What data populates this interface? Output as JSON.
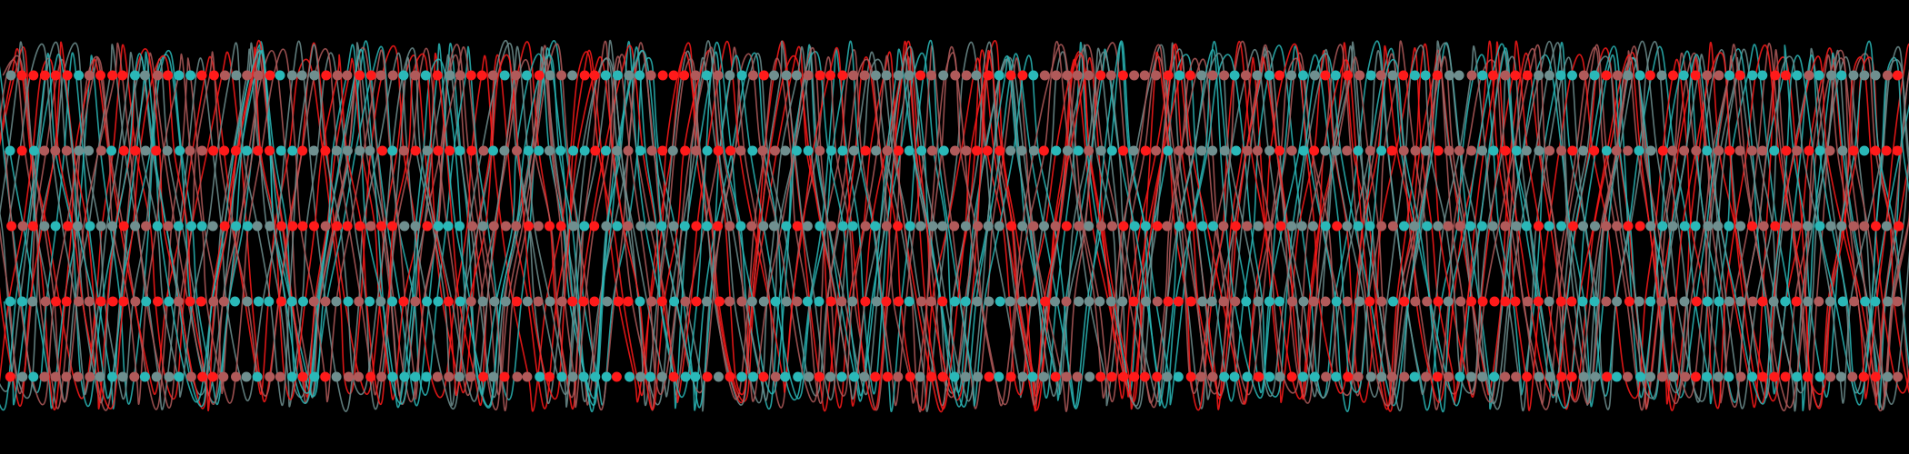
{
  "palette": [
    "#ff1a1a",
    "#2ab8b8",
    "#6f8f8f",
    "#b05a5a"
  ]
}
